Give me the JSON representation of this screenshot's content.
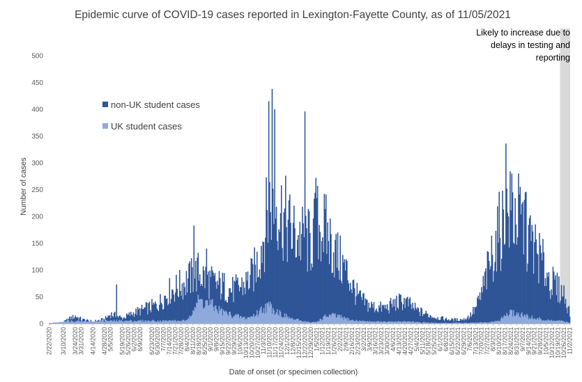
{
  "chart_data": {
    "type": "bar",
    "stacked": true,
    "title": "Epidemic curve of COVID-19 cases reported in Lexington-Fayette County, as of 11/05/2021",
    "xlabel": "Date of onset (or specimen collection)",
    "ylabel": "Number of cases",
    "ylim": [
      0,
      500
    ],
    "yticks": [
      0,
      50,
      100,
      150,
      200,
      250,
      300,
      350,
      400,
      450,
      500
    ],
    "grid": false,
    "legend_position": "upper-left",
    "x_start": "2/22/2020",
    "x_end": "11/2/2021",
    "xtick_labels": [
      "2/22/2020",
      "3/10/2020",
      "3/24/2020",
      "3/31/2020",
      "4/14/2020",
      "4/28/2020",
      "5/5/2020",
      "5/19/2020",
      "5/26/2020",
      "6/2/2020",
      "6/9/2020",
      "6/23/2020",
      "6/30/2020",
      "7/7/2020",
      "7/14/2020",
      "7/21/2020",
      "7/28/2020",
      "8/4/2020",
      "8/11/2020",
      "8/18/2020",
      "8/25/2020",
      "9/1/2020",
      "9/8/2020",
      "9/15/2020",
      "9/22/2020",
      "9/29/2020",
      "10/6/2020",
      "10/13/2020",
      "10/20/2020",
      "10/27/2020",
      "11/3/2020",
      "11/10/2020",
      "11/17/2020",
      "11/24/2020",
      "12/1/2020",
      "12/8/2020",
      "12/15/2020",
      "12/22/2020",
      "12/29/2020",
      "1/5/2021",
      "1/12/2021",
      "1/19/2021",
      "1/26/2021",
      "2/2/2021",
      "2/9/2021",
      "2/16/2021",
      "2/23/2021",
      "3/2/2021",
      "3/9/2021",
      "3/16/2021",
      "3/23/2021",
      "3/30/2021",
      "4/6/2021",
      "4/13/2021",
      "4/20/2021",
      "4/27/2021",
      "5/4/2021",
      "5/11/2021",
      "5/18/2021",
      "5/25/2021",
      "6/1/2021",
      "6/8/2021",
      "6/15/2021",
      "6/22/2021",
      "6/29/2021",
      "7/6/2021",
      "7/13/2021",
      "7/20/2021",
      "7/27/2021",
      "8/3/2021",
      "8/10/2021",
      "8/17/2021",
      "8/24/2021",
      "8/31/2021",
      "9/7/2021",
      "9/14/2021",
      "9/21/2021",
      "9/28/2021",
      "10/5/2021",
      "10/12/2021",
      "10/19/2021",
      "10/26/2021",
      "11/2/2021"
    ],
    "series": [
      {
        "name": "non-UK student cases",
        "color": "#2e5597",
        "note": "values are daily totals (UK + non-UK), estimated from the curve"
      },
      {
        "name": "UK student cases",
        "color": "#8faadc"
      }
    ],
    "daily_total_anchors": [
      [
        "2020-02-22",
        1
      ],
      [
        "2020-03-10",
        3
      ],
      [
        "2020-03-18",
        10
      ],
      [
        "2020-03-24",
        14
      ],
      [
        "2020-03-31",
        8
      ],
      [
        "2020-04-14",
        4
      ],
      [
        "2020-04-28",
        8
      ],
      [
        "2020-05-05",
        18
      ],
      [
        "2020-05-19",
        10
      ],
      [
        "2020-06-02",
        20
      ],
      [
        "2020-06-16",
        28
      ],
      [
        "2020-06-30",
        35
      ],
      [
        "2020-07-07",
        48
      ],
      [
        "2020-07-14",
        60
      ],
      [
        "2020-07-21",
        65
      ],
      [
        "2020-07-28",
        72
      ],
      [
        "2020-08-04",
        80
      ],
      [
        "2020-08-11",
        88
      ],
      [
        "2020-08-18",
        96
      ],
      [
        "2020-08-25",
        85
      ],
      [
        "2020-09-01",
        78
      ],
      [
        "2020-09-08",
        72
      ],
      [
        "2020-09-15",
        70
      ],
      [
        "2020-09-22",
        64
      ],
      [
        "2020-09-29",
        62
      ],
      [
        "2020-10-06",
        68
      ],
      [
        "2020-10-13",
        75
      ],
      [
        "2020-10-20",
        88
      ],
      [
        "2020-10-27",
        115
      ],
      [
        "2020-11-03",
        165
      ],
      [
        "2020-11-10",
        225
      ],
      [
        "2020-11-17",
        235
      ],
      [
        "2020-11-24",
        205
      ],
      [
        "2020-12-01",
        185
      ],
      [
        "2020-12-08",
        165
      ],
      [
        "2020-12-15",
        160
      ],
      [
        "2020-12-22",
        155
      ],
      [
        "2020-12-29",
        150
      ],
      [
        "2021-01-05",
        185
      ],
      [
        "2021-01-12",
        180
      ],
      [
        "2021-01-19",
        160
      ],
      [
        "2021-01-26",
        135
      ],
      [
        "2021-02-02",
        115
      ],
      [
        "2021-02-09",
        98
      ],
      [
        "2021-02-16",
        72
      ],
      [
        "2021-02-23",
        50
      ],
      [
        "2021-03-02",
        40
      ],
      [
        "2021-03-09",
        34
      ],
      [
        "2021-03-16",
        30
      ],
      [
        "2021-03-23",
        29
      ],
      [
        "2021-03-30",
        30
      ],
      [
        "2021-04-06",
        36
      ],
      [
        "2021-04-13",
        40
      ],
      [
        "2021-04-20",
        42
      ],
      [
        "2021-04-27",
        33
      ],
      [
        "2021-05-04",
        25
      ],
      [
        "2021-05-11",
        20
      ],
      [
        "2021-05-18",
        16
      ],
      [
        "2021-05-25",
        12
      ],
      [
        "2021-06-01",
        10
      ],
      [
        "2021-06-08",
        8
      ],
      [
        "2021-06-15",
        7
      ],
      [
        "2021-06-22",
        7
      ],
      [
        "2021-06-29",
        8
      ],
      [
        "2021-07-06",
        14
      ],
      [
        "2021-07-13",
        28
      ],
      [
        "2021-07-20",
        55
      ],
      [
        "2021-07-27",
        95
      ],
      [
        "2021-08-03",
        135
      ],
      [
        "2021-08-10",
        170
      ],
      [
        "2021-08-17",
        195
      ],
      [
        "2021-08-24",
        205
      ],
      [
        "2021-08-31",
        200
      ],
      [
        "2021-09-07",
        185
      ],
      [
        "2021-09-14",
        160
      ],
      [
        "2021-09-21",
        140
      ],
      [
        "2021-09-28",
        120
      ],
      [
        "2021-10-05",
        95
      ],
      [
        "2021-10-12",
        75
      ],
      [
        "2021-10-19",
        65
      ],
      [
        "2021-10-26",
        55
      ],
      [
        "2021-11-02",
        20
      ]
    ],
    "daily_total_spikes": [
      [
        "2020-05-12",
        73
      ],
      [
        "2020-08-12",
        183
      ],
      [
        "2020-08-27",
        140
      ],
      [
        "2020-11-09",
        415
      ],
      [
        "2020-11-13",
        438
      ],
      [
        "2020-11-16",
        400
      ],
      [
        "2020-12-22",
        396
      ],
      [
        "2021-01-04",
        272
      ],
      [
        "2021-08-18",
        336
      ],
      [
        "2021-08-25",
        280
      ],
      [
        "2021-09-10",
        245
      ]
    ],
    "uk_student_anchors": [
      [
        "2020-08-04",
        5
      ],
      [
        "2020-08-11",
        30
      ],
      [
        "2020-08-18",
        42
      ],
      [
        "2020-08-25",
        40
      ],
      [
        "2020-09-01",
        35
      ],
      [
        "2020-09-08",
        28
      ],
      [
        "2020-09-15",
        22
      ],
      [
        "2020-09-22",
        18
      ],
      [
        "2020-09-29",
        15
      ],
      [
        "2020-10-06",
        12
      ],
      [
        "2020-10-13",
        10
      ],
      [
        "2020-10-20",
        13
      ],
      [
        "2020-10-27",
        20
      ],
      [
        "2020-11-03",
        30
      ],
      [
        "2020-11-10",
        32
      ],
      [
        "2020-11-17",
        25
      ],
      [
        "2020-11-24",
        18
      ],
      [
        "2020-12-01",
        12
      ],
      [
        "2020-12-08",
        8
      ],
      [
        "2020-12-15",
        6
      ],
      [
        "2020-12-22",
        4
      ],
      [
        "2020-12-29",
        2
      ],
      [
        "2021-01-05",
        3
      ],
      [
        "2021-01-12",
        10
      ],
      [
        "2021-01-19",
        15
      ],
      [
        "2021-01-26",
        15
      ],
      [
        "2021-02-02",
        12
      ],
      [
        "2021-02-09",
        9
      ],
      [
        "2021-02-16",
        6
      ],
      [
        "2021-02-23",
        5
      ],
      [
        "2021-03-09",
        4
      ],
      [
        "2021-03-30",
        3
      ],
      [
        "2021-04-20",
        4
      ],
      [
        "2021-05-11",
        2
      ],
      [
        "2021-06-01",
        1
      ],
      [
        "2021-07-27",
        2
      ],
      [
        "2021-08-10",
        5
      ],
      [
        "2021-08-17",
        15
      ],
      [
        "2021-08-24",
        20
      ],
      [
        "2021-08-31",
        18
      ],
      [
        "2021-09-07",
        15
      ],
      [
        "2021-09-14",
        12
      ],
      [
        "2021-09-21",
        10
      ],
      [
        "2021-09-28",
        8
      ],
      [
        "2021-10-05",
        6
      ],
      [
        "2021-10-19",
        5
      ],
      [
        "2021-10-26",
        4
      ],
      [
        "2021-11-02",
        1
      ]
    ],
    "shaded_region": {
      "start": "10/22/2021",
      "end": "11/05/2021",
      "label": "Likely to increase due to delays in testing and reporting",
      "label_lines": [
        "Likely to increase due to",
        "delays in testing and",
        "reporting"
      ],
      "color": "#d9d9d9"
    }
  }
}
